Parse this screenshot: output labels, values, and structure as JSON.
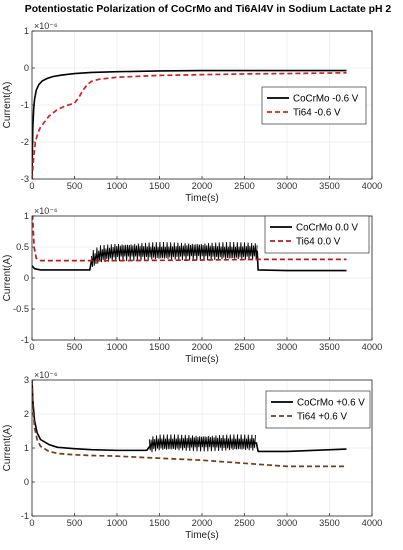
{
  "title": "Potentiostatic Polarization of CoCrMo and Ti6Al4V in Sodium Lactate pH 2",
  "colors": {
    "cocrmo": "#000000",
    "ti64_top": "#d62020",
    "ti64_mid": "#b71c1c",
    "ti64_bottom": "#7a3a1a"
  },
  "chart_data": [
    {
      "type": "line",
      "title": "Potentiostatic Polarization of CoCrMo and Ti6Al4V in Sodium Lactate pH 2",
      "xlabel": "Time(s)",
      "ylabel": "Current(A)",
      "exponent_label": "×10⁻⁶",
      "xlim": [
        0,
        4000
      ],
      "ylim": [
        -3,
        1
      ],
      "xticks": [
        "0",
        "500",
        "1000",
        "1500",
        "2000",
        "2500",
        "3000",
        "3500",
        "4000"
      ],
      "yticks": [
        "-3",
        "-2",
        "-1",
        "0",
        "1"
      ],
      "grid": true,
      "legend_position": "right-middle",
      "series": [
        {
          "name": "CoCrMo -0.6 V",
          "style": "solid",
          "x": [
            0,
            5,
            10,
            20,
            30,
            50,
            80,
            120,
            180,
            250,
            350,
            500,
            700,
            1000,
            1500,
            2000,
            2500,
            3000,
            3700
          ],
          "y": [
            -3.0,
            -2.2,
            -1.6,
            -1.1,
            -0.85,
            -0.6,
            -0.45,
            -0.35,
            -0.28,
            -0.23,
            -0.19,
            -0.15,
            -0.12,
            -0.1,
            -0.08,
            -0.07,
            -0.07,
            -0.07,
            -0.07
          ]
        },
        {
          "name": "Ti64 -0.6 V",
          "style": "dashed",
          "x": [
            0,
            10,
            20,
            40,
            70,
            100,
            150,
            200,
            300,
            400,
            500,
            550,
            600,
            650,
            700,
            800,
            1000,
            1500,
            2000,
            2500,
            3000,
            3700
          ],
          "y": [
            -3.0,
            -2.7,
            -2.4,
            -2.0,
            -1.75,
            -1.6,
            -1.45,
            -1.3,
            -1.12,
            -1.02,
            -0.95,
            -0.8,
            -0.6,
            -0.45,
            -0.36,
            -0.3,
            -0.25,
            -0.2,
            -0.18,
            -0.16,
            -0.15,
            -0.13
          ]
        }
      ]
    },
    {
      "type": "line",
      "xlabel": "Time(s)",
      "ylabel": "Current(A)",
      "exponent_label": "×10⁻⁶",
      "xlim": [
        0,
        4000
      ],
      "ylim": [
        -1,
        1
      ],
      "xticks": [
        "0",
        "500",
        "1000",
        "1500",
        "2000",
        "2500",
        "3000",
        "3500",
        "4000"
      ],
      "yticks": [
        "-1",
        "-0.5",
        "0",
        "0.5",
        "1"
      ],
      "grid": true,
      "legend_position": "top-right",
      "series": [
        {
          "name": "CoCrMo 0.0 V",
          "style": "solid",
          "x": [
            0,
            30,
            100,
            680,
            700,
            750,
            800,
            1000,
            1500,
            2000,
            2500,
            2650,
            2660,
            3000,
            3700
          ],
          "y": [
            0.2,
            0.15,
            0.13,
            0.13,
            0.28,
            0.33,
            0.38,
            0.42,
            0.43,
            0.43,
            0.43,
            0.43,
            0.13,
            0.12,
            0.12
          ],
          "oscillation": {
            "x_start": 700,
            "x_end": 2650,
            "amplitude": 0.15
          }
        },
        {
          "name": "Ti64 0.0 V",
          "style": "dashed",
          "x": [
            0,
            10,
            25,
            50,
            100,
            700,
            1000,
            2000,
            2650,
            3000,
            3700
          ],
          "y": [
            1.15,
            0.9,
            0.5,
            0.32,
            0.28,
            0.28,
            0.28,
            0.29,
            0.3,
            0.3,
            0.3
          ]
        }
      ]
    },
    {
      "type": "line",
      "xlabel": "Time(s)",
      "ylabel": "Current(A)",
      "exponent_label": "×10⁻⁶",
      "xlim": [
        0,
        4000
      ],
      "ylim": [
        -1,
        3
      ],
      "xticks": [
        "0",
        "500",
        "1000",
        "1500",
        "2000",
        "2500",
        "3000",
        "3500",
        "4000"
      ],
      "yticks": [
        "-1",
        "0",
        "1",
        "2",
        "3"
      ],
      "grid": true,
      "legend_position": "top-right",
      "series": [
        {
          "name": "CoCrMo +0.6 V",
          "style": "solid",
          "x": [
            0,
            10,
            30,
            60,
            100,
            200,
            300,
            500,
            700,
            1000,
            1350,
            1400,
            1500,
            2000,
            2640,
            2660,
            3000,
            3700
          ],
          "y": [
            3.0,
            2.4,
            1.8,
            1.45,
            1.25,
            1.1,
            1.02,
            0.98,
            0.95,
            0.93,
            0.93,
            1.1,
            1.15,
            1.15,
            1.15,
            0.9,
            0.9,
            0.97
          ],
          "oscillation": {
            "x_start": 1380,
            "x_end": 2640,
            "amplitude": 0.25
          }
        },
        {
          "name": "Ti64 +0.6 V",
          "style": "dashed",
          "x": [
            0,
            10,
            30,
            60,
            100,
            200,
            300,
            500,
            700,
            1000,
            1500,
            2000,
            2500,
            3000,
            3700
          ],
          "y": [
            3.0,
            2.2,
            1.6,
            1.25,
            1.05,
            0.9,
            0.84,
            0.8,
            0.78,
            0.76,
            0.7,
            0.64,
            0.55,
            0.46,
            0.46
          ]
        }
      ]
    }
  ]
}
